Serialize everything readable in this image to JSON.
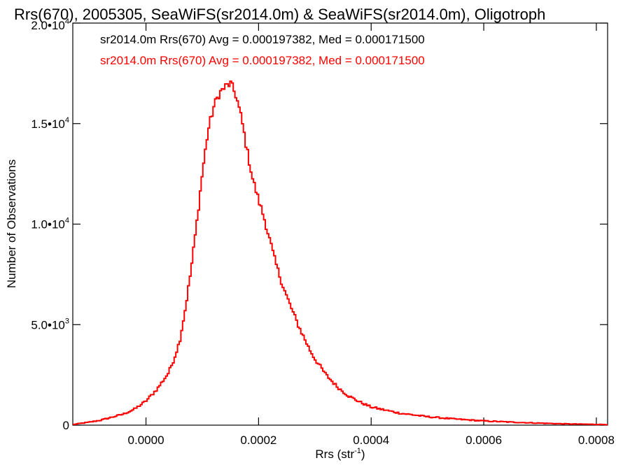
{
  "chart_data": {
    "type": "histogram",
    "title": "Rrs(670), 2005305, SeaWiFS(sr2014.0m) & SeaWiFS(sr2014.0m), Oligotroph",
    "xlabel": {
      "base": "Rrs (str",
      "sup": "-1",
      "tail": ")"
    },
    "ylabel": "Number of Observations",
    "xlim": [
      -0.00013,
      0.00082
    ],
    "ylim": [
      0,
      20000
    ],
    "x_ticks": [
      0.0,
      0.0002,
      0.0004,
      0.0006,
      0.0008
    ],
    "x_tick_labels": [
      "0.0000",
      "0.0002",
      "0.0004",
      "0.0006",
      "0.0008"
    ],
    "y_ticks": [
      0,
      5000,
      10000,
      15000,
      20000
    ],
    "y_tick_labels": [
      {
        "base": "0",
        "exp": ""
      },
      {
        "base": "5.0•10",
        "exp": "3"
      },
      {
        "base": "1.0•10",
        "exp": "4"
      },
      {
        "base": "1.5•10",
        "exp": "4"
      },
      {
        "base": "2.0•10",
        "exp": "4"
      }
    ],
    "annotations": [
      {
        "text": "sr2014.0m Rrs(670) Avg = 0.000197382, Med = 0.000171500",
        "color": "#000000"
      },
      {
        "text": "sr2014.0m Rrs(670) Avg = 0.000197382, Med = 0.000171500",
        "color": "#ff0000"
      }
    ],
    "series": [
      {
        "color": "#ff0000",
        "curve_x": [
          -0.00013,
          -0.0001,
          -8e-05,
          -6e-05,
          -4e-05,
          -2e-05,
          0.0,
          2e-05,
          4e-05,
          5e-05,
          6e-05,
          7e-05,
          8e-05,
          9e-05,
          0.0001,
          0.00011,
          0.00012,
          0.00013,
          0.00014,
          0.00015,
          0.00016,
          0.00017,
          0.00018,
          0.00019,
          0.0002,
          0.00021,
          0.00022,
          0.00023,
          0.00024,
          0.00025,
          0.00026,
          0.00027,
          0.00028,
          0.00029,
          0.0003,
          0.00032,
          0.00034,
          0.00036,
          0.00038,
          0.0004,
          0.00045,
          0.0005,
          0.00055,
          0.0006,
          0.00065,
          0.0007,
          0.00075,
          0.00082
        ],
        "curve_y": [
          30,
          150,
          250,
          400,
          550,
          800,
          1200,
          1800,
          2600,
          3300,
          4200,
          5800,
          7700,
          10000,
          12500,
          14600,
          15800,
          16500,
          16800,
          17000,
          16400,
          15200,
          13600,
          12200,
          11200,
          10300,
          9200,
          8100,
          7200,
          6400,
          5700,
          5000,
          4400,
          3800,
          3300,
          2500,
          1900,
          1450,
          1150,
          900,
          600,
          420,
          300,
          210,
          150,
          100,
          60,
          30
        ]
      }
    ]
  }
}
